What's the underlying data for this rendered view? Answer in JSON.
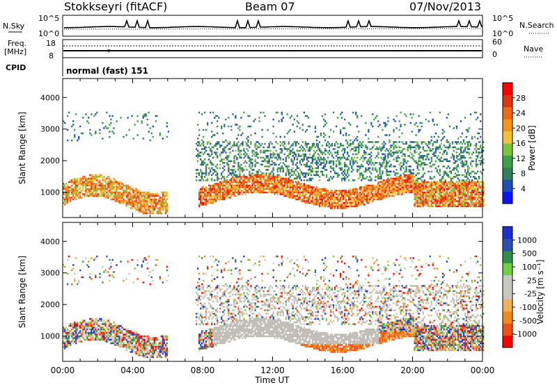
{
  "header": {
    "station": "Stokkseyri (fitACF)",
    "beam": "Beam 07",
    "date": "07/Nov/2013"
  },
  "panels": {
    "noise": {
      "left_label": "N.Sky",
      "left_ticks": [
        "10^5",
        "10^0"
      ],
      "right_ticks": [
        "10^5",
        "10^0"
      ],
      "right_label": "N.Search"
    },
    "freq": {
      "left_label_1": "Freq.",
      "left_label_2": "[MHz]",
      "left_ticks": [
        "18",
        "8"
      ],
      "right_ticks": [
        "60",
        "0"
      ],
      "right_label": "Nave"
    },
    "cpid": {
      "left_label": "CPID",
      "mode_text": "normal (fast) 151"
    }
  },
  "colors": {
    "power": [
      "#0a14ff",
      "#1e4fb2",
      "#2f7f57",
      "#3fa14a",
      "#7cc43a",
      "#f2c23a",
      "#f5951a",
      "#ef6a12",
      "#e23216",
      "#ff0000"
    ],
    "velocity": [
      "#ff0000",
      "#f24f14",
      "#f08a1a",
      "#f0b258",
      "#c8c8c0",
      "#c8c8c0",
      "#6fcf3f",
      "#2f8f4a",
      "#2a4fae",
      "#1e2fd0"
    ],
    "ground_scatter": "#bebcb4"
  },
  "chart_data": [
    {
      "type": "heatmap",
      "name": "power",
      "ylabel": "Slant Range [km]",
      "yticks": [
        "1000",
        "2000",
        "3000",
        "4000"
      ],
      "ylim": [
        200,
        4600
      ],
      "xlim": [
        0,
        24
      ],
      "colorbar": {
        "label": "Power [dB]",
        "ticks": [
          "4",
          "8",
          "12",
          "16",
          "20",
          "24",
          "28"
        ],
        "range": [
          0,
          32
        ]
      }
    },
    {
      "type": "heatmap",
      "name": "velocity",
      "ylabel": "Slant Range [km]",
      "yticks": [
        "1000",
        "2000",
        "3000",
        "4000"
      ],
      "ylim": [
        200,
        4600
      ],
      "xlim": [
        0,
        24
      ],
      "xlabel": "Time UT",
      "xticks": [
        "00:00",
        "04:00",
        "08:00",
        "12:00",
        "16:00",
        "20:00",
        "00:00"
      ],
      "colorbar": {
        "label": "Velocity [m s⁻¹]",
        "ticks": [
          "-1000",
          "-500",
          "-100",
          "-25",
          "25",
          "100",
          "500",
          "1000"
        ]
      }
    }
  ]
}
